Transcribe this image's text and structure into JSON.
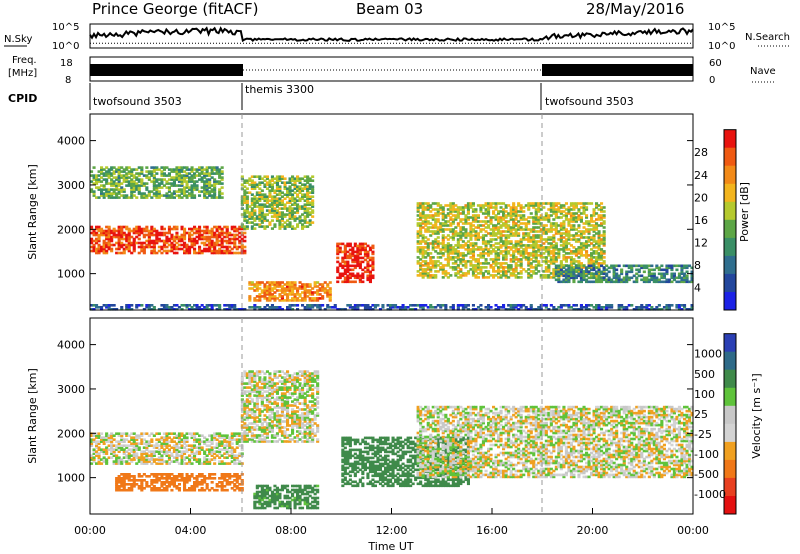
{
  "header": {
    "station": "Prince George (fitACF)",
    "beam": "Beam 03",
    "date": "28/May/2016"
  },
  "noise_panel": {
    "left_label": "N.Sky",
    "right_label": "N.Search",
    "left_ticks": [
      "10^5",
      "10^0"
    ],
    "right_ticks": [
      "10^5",
      "10^0"
    ]
  },
  "freq_panel": {
    "left_label_line1": "Freq.",
    "left_label_line2": "[MHz]",
    "left_ticks": [
      "18",
      "8"
    ],
    "right_ticks": [
      "60",
      "0"
    ],
    "right_label": "Nave"
  },
  "cpid_panel": {
    "label": "CPID",
    "segments": [
      {
        "name": "twofsound 3503",
        "start_hour": 0,
        "end_hour": 6
      },
      {
        "name": "themis 3300",
        "start_hour": 6,
        "end_hour": 18
      },
      {
        "name": "twofsound 3503",
        "start_hour": 18,
        "end_hour": 24
      }
    ]
  },
  "colors": {
    "power_scale": [
      "#1c22e6",
      "#23479d",
      "#2f6e8e",
      "#3a8f66",
      "#5da646",
      "#b5c92e",
      "#f3b51e",
      "#f28a18",
      "#ef5a12",
      "#e8130f"
    ],
    "velocity_scale": [
      "#2b3fb4",
      "#2e6a88",
      "#3f8a4a",
      "#5fc33b",
      "#c8c8c8",
      "#d3d3d3",
      "#f0a020",
      "#f07818",
      "#e84020",
      "#e41010"
    ]
  },
  "chart_data": [
    {
      "type": "heatmap",
      "title": "Power",
      "xlabel": "",
      "ylabel": "Slant Range [km]",
      "xlim": [
        0,
        24
      ],
      "ylim": [
        180,
        4600
      ],
      "x_unit": "hours UT",
      "yticks": [
        1000,
        2000,
        3000,
        4000
      ],
      "colorbar": {
        "label": "Power [dB]",
        "ticks": [
          4,
          8,
          12,
          16,
          20,
          24,
          28
        ],
        "range": [
          0,
          32
        ]
      },
      "features": [
        {
          "description": "band",
          "start_hour": 0.0,
          "end_hour": 6.1,
          "range_start_km": 1450,
          "range_end_km": 2050,
          "value": 28
        },
        {
          "description": "band",
          "start_hour": 0.0,
          "end_hour": 5.2,
          "range_start_km": 2700,
          "range_end_km": 3400,
          "value": 14
        },
        {
          "description": "band",
          "start_hour": 6.0,
          "end_hour": 8.8,
          "range_start_km": 2000,
          "range_end_km": 3200,
          "value": 16
        },
        {
          "description": "band",
          "start_hour": 6.3,
          "end_hour": 9.5,
          "range_start_km": 380,
          "range_end_km": 800,
          "value": 24
        },
        {
          "description": "band",
          "start_hour": 9.8,
          "end_hour": 11.2,
          "range_start_km": 800,
          "range_end_km": 1700,
          "value": 30
        },
        {
          "description": "band",
          "start_hour": 13.0,
          "end_hour": 20.5,
          "range_start_km": 900,
          "range_end_km": 2600,
          "value": 18
        },
        {
          "description": "band",
          "start_hour": 18.5,
          "end_hour": 24.0,
          "range_start_km": 800,
          "range_end_km": 1200,
          "value": 10
        },
        {
          "description": "band",
          "start_hour": 0.0,
          "end_hour": 24.0,
          "range_start_km": 180,
          "range_end_km": 300,
          "value": 6
        }
      ]
    },
    {
      "type": "heatmap",
      "title": "Velocity",
      "xlabel": "Time UT",
      "ylabel": "Slant Range [km]",
      "xlim": [
        0,
        24
      ],
      "ylim": [
        180,
        4600
      ],
      "xticks": [
        "00:00",
        "04:00",
        "08:00",
        "12:00",
        "16:00",
        "20:00",
        "00:00"
      ],
      "yticks": [
        1000,
        2000,
        3000,
        4000
      ],
      "colorbar": {
        "label": "Velocity [m s⁻¹]",
        "ticks": [
          "1000",
          "500",
          "100",
          "25",
          "-25",
          "-100",
          "-500",
          "-1000"
        ]
      },
      "features": [
        {
          "description": "band",
          "start_hour": 0.0,
          "end_hour": 6.0,
          "range_start_km": 1300,
          "range_end_km": 2000,
          "value": 0
        },
        {
          "description": "band",
          "start_hour": 1.0,
          "end_hour": 6.0,
          "range_start_km": 700,
          "range_end_km": 1100,
          "value": -300
        },
        {
          "description": "band",
          "start_hour": 6.0,
          "end_hour": 9.0,
          "range_start_km": 1800,
          "range_end_km": 3400,
          "value": 0
        },
        {
          "description": "band",
          "start_hour": 6.5,
          "end_hour": 9.0,
          "range_start_km": 300,
          "range_end_km": 800,
          "value": 150
        },
        {
          "description": "band",
          "start_hour": 10.0,
          "end_hour": 15.0,
          "range_start_km": 800,
          "range_end_km": 1900,
          "value": 300
        },
        {
          "description": "band",
          "start_hour": 13.0,
          "end_hour": 24.0,
          "range_start_km": 1000,
          "range_end_km": 2600,
          "value": 0
        }
      ]
    }
  ]
}
